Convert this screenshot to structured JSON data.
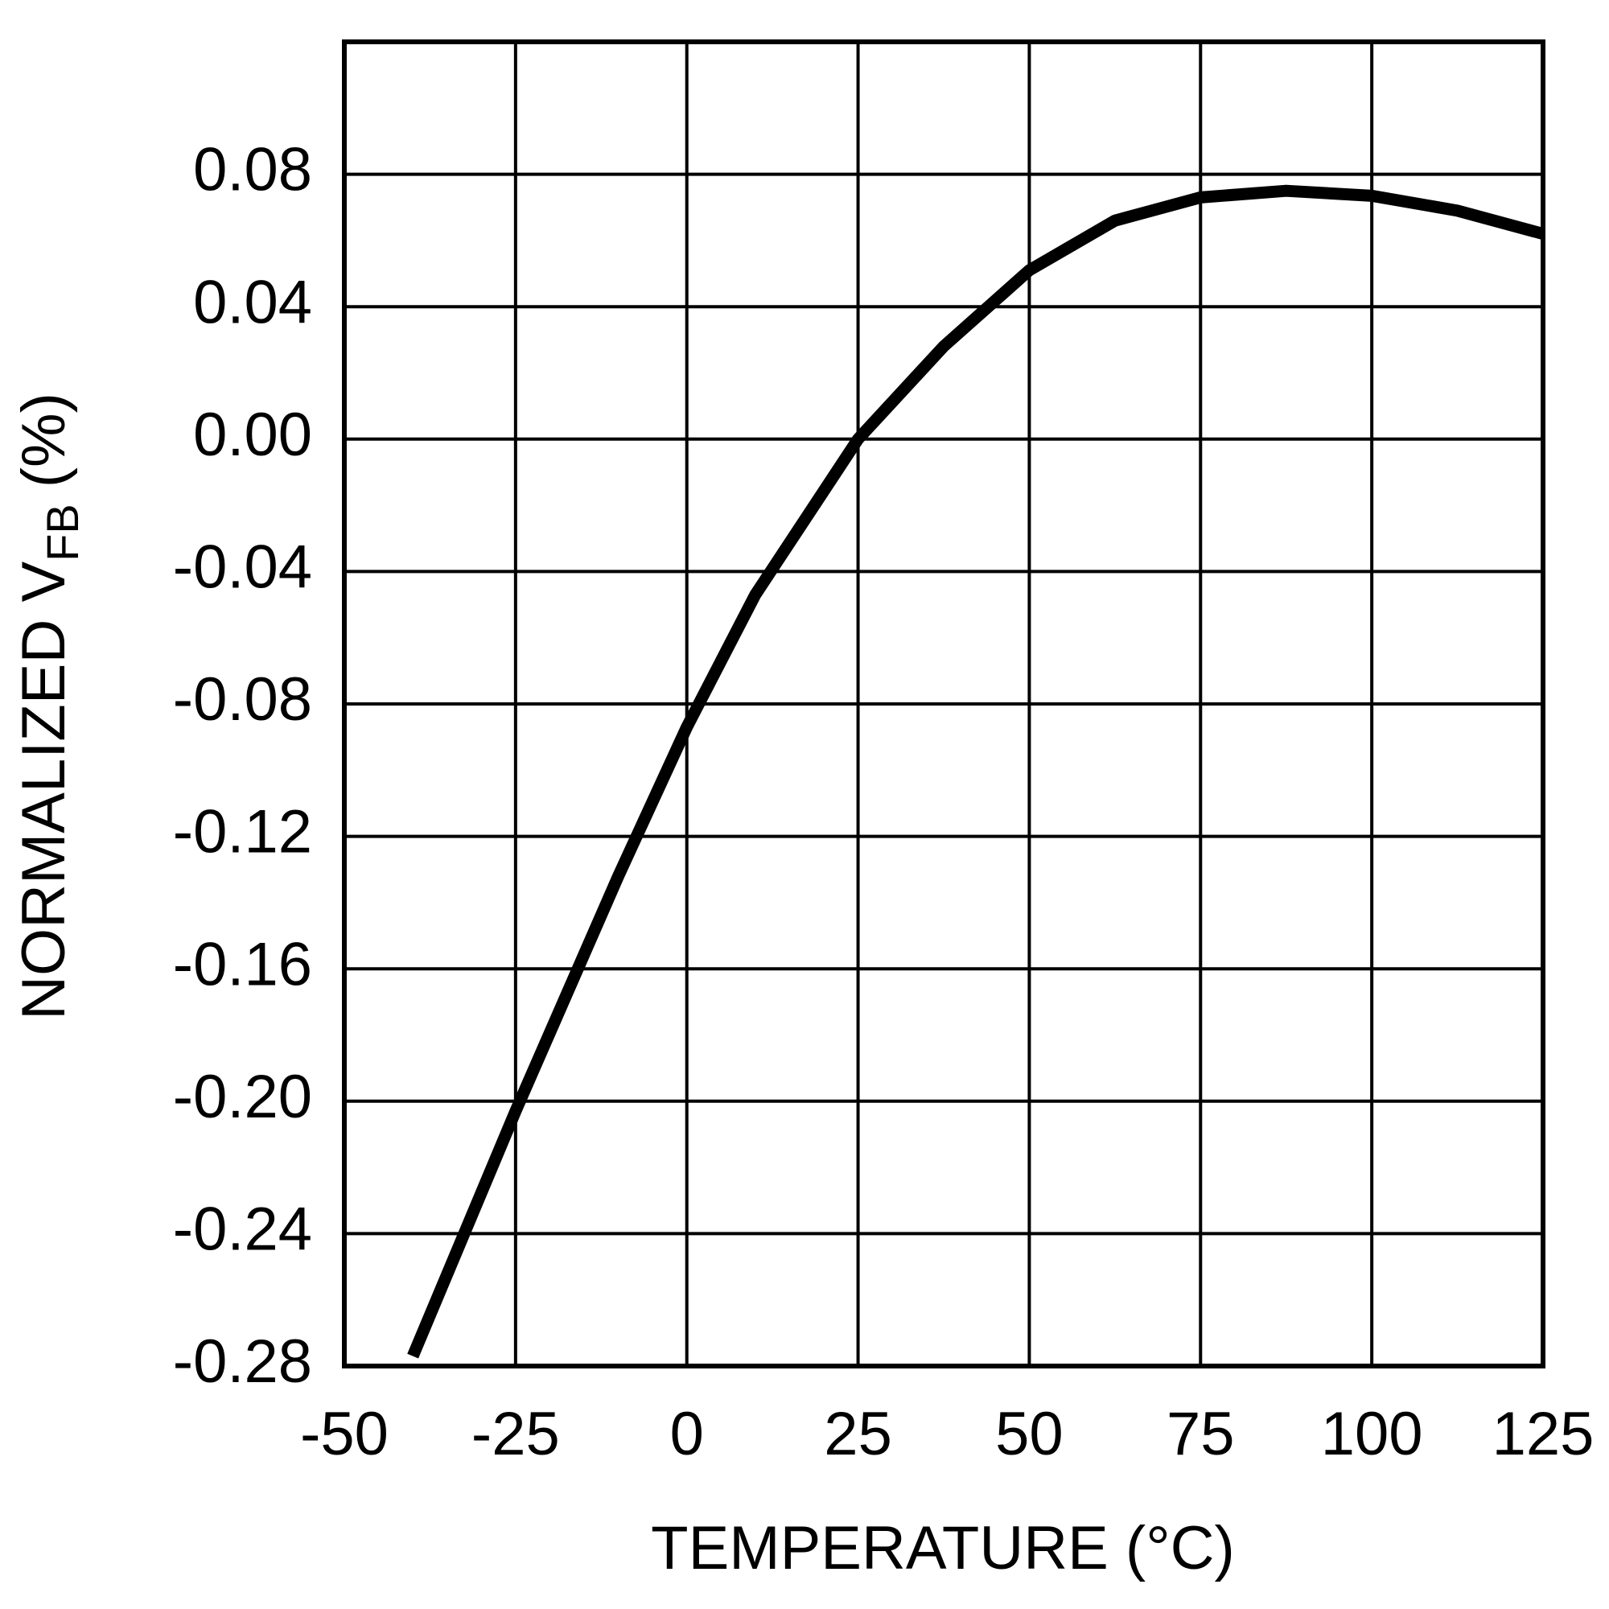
{
  "chart_data": {
    "type": "line",
    "xlabel": "TEMPERATURE (°C)",
    "ylabel": {
      "main": "NORMALIZED V",
      "sub": "FB",
      "unit": "(%)"
    },
    "x": [
      -40,
      -25,
      -10,
      0,
      10,
      25,
      37.5,
      50,
      62.5,
      75,
      87.5,
      100,
      112.5,
      125
    ],
    "series": [
      {
        "color": "#000000",
        "values": [
          -0.277,
          -0.203,
          -0.132,
          -0.087,
          -0.047,
          0.0,
          0.028,
          0.051,
          0.066,
          0.073,
          0.075,
          0.0735,
          0.069,
          0.062
        ]
      }
    ],
    "xlim": [
      -50,
      125
    ],
    "xticks": [
      -50,
      -25,
      0,
      25,
      50,
      75,
      100,
      125
    ],
    "ylim": [
      -0.28,
      0.12
    ],
    "yticks": [
      -0.28,
      -0.24,
      {
        "value": -0.2,
        "label": "-0.20"
      },
      -0.16,
      -0.12,
      -0.08,
      -0.04,
      {
        "value": 0,
        "label": "0.00"
      },
      0.04,
      0.08
    ],
    "grid": true
  }
}
